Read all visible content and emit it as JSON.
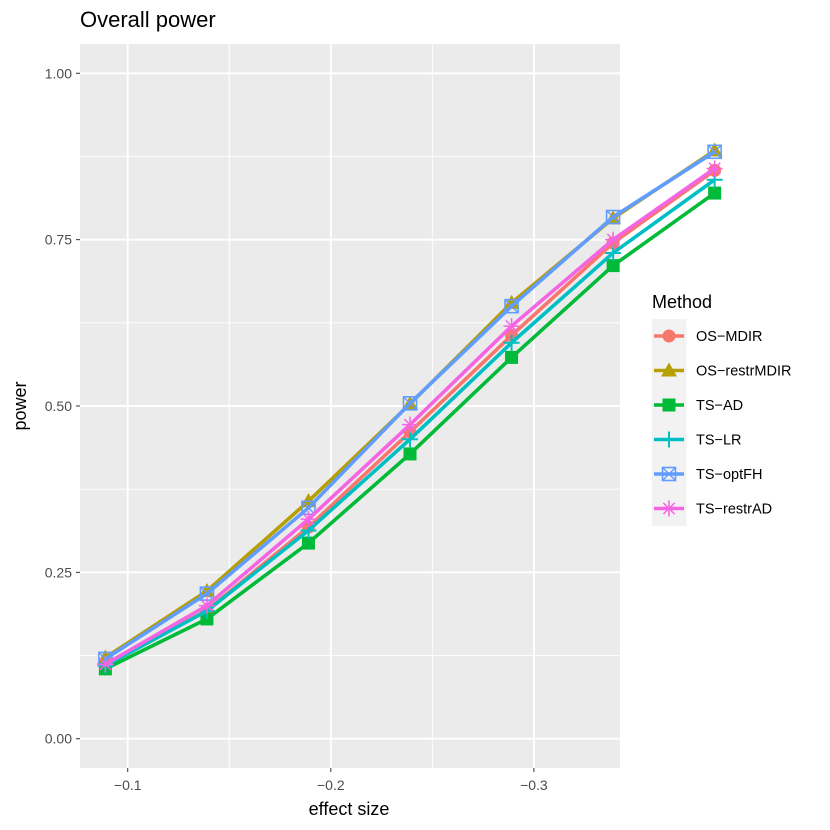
{
  "chart_data": {
    "type": "line",
    "title": "Overall power",
    "xlabel": "effect size",
    "ylabel": "power",
    "x_axis_reversed": true,
    "xlim": [
      -0.0765,
      -0.3424
    ],
    "ylim": [
      -0.044,
      1.044
    ],
    "x_ticks": [
      {
        "value": -0.1,
        "label": "−0.1"
      },
      {
        "value": -0.2,
        "label": "−0.2"
      },
      {
        "value": -0.3,
        "label": "−0.3"
      }
    ],
    "y_ticks": [
      {
        "value": 0.0,
        "label": "0.00"
      },
      {
        "value": 0.25,
        "label": "0.25"
      },
      {
        "value": 0.5,
        "label": "0.50"
      },
      {
        "value": 0.75,
        "label": "0.75"
      },
      {
        "value": 1.0,
        "label": "1.00"
      }
    ],
    "grid": true,
    "legend_title": "Method",
    "legend_position": "right",
    "x": [
      -0.089,
      -0.139,
      -0.189,
      -0.239,
      -0.289,
      -0.339,
      -0.389
    ],
    "series": [
      {
        "name": "OS−MDIR",
        "color": "#F8766D",
        "shape": "circle",
        "values": [
          0.11,
          0.193,
          0.318,
          0.461,
          0.606,
          0.745,
          0.854
        ]
      },
      {
        "name": "OS−restrMDIR",
        "color": "#B79F00",
        "shape": "triangle",
        "values": [
          0.122,
          0.222,
          0.357,
          0.503,
          0.655,
          0.782,
          0.884
        ]
      },
      {
        "name": "TS−AD",
        "color": "#00BA38",
        "shape": "square",
        "values": [
          0.105,
          0.18,
          0.294,
          0.428,
          0.573,
          0.711,
          0.82
        ]
      },
      {
        "name": "TS−LR",
        "color": "#00BFC4",
        "shape": "plus",
        "values": [
          0.11,
          0.192,
          0.313,
          0.45,
          0.595,
          0.73,
          0.84
        ]
      },
      {
        "name": "TS−optFH",
        "color": "#619CFF",
        "shape": "square-x",
        "values": [
          0.12,
          0.218,
          0.347,
          0.504,
          0.65,
          0.784,
          0.882
        ]
      },
      {
        "name": "TS−restrAD",
        "color": "#F564E3",
        "shape": "asterisk",
        "values": [
          0.112,
          0.2,
          0.33,
          0.472,
          0.62,
          0.75,
          0.857
        ]
      }
    ]
  }
}
